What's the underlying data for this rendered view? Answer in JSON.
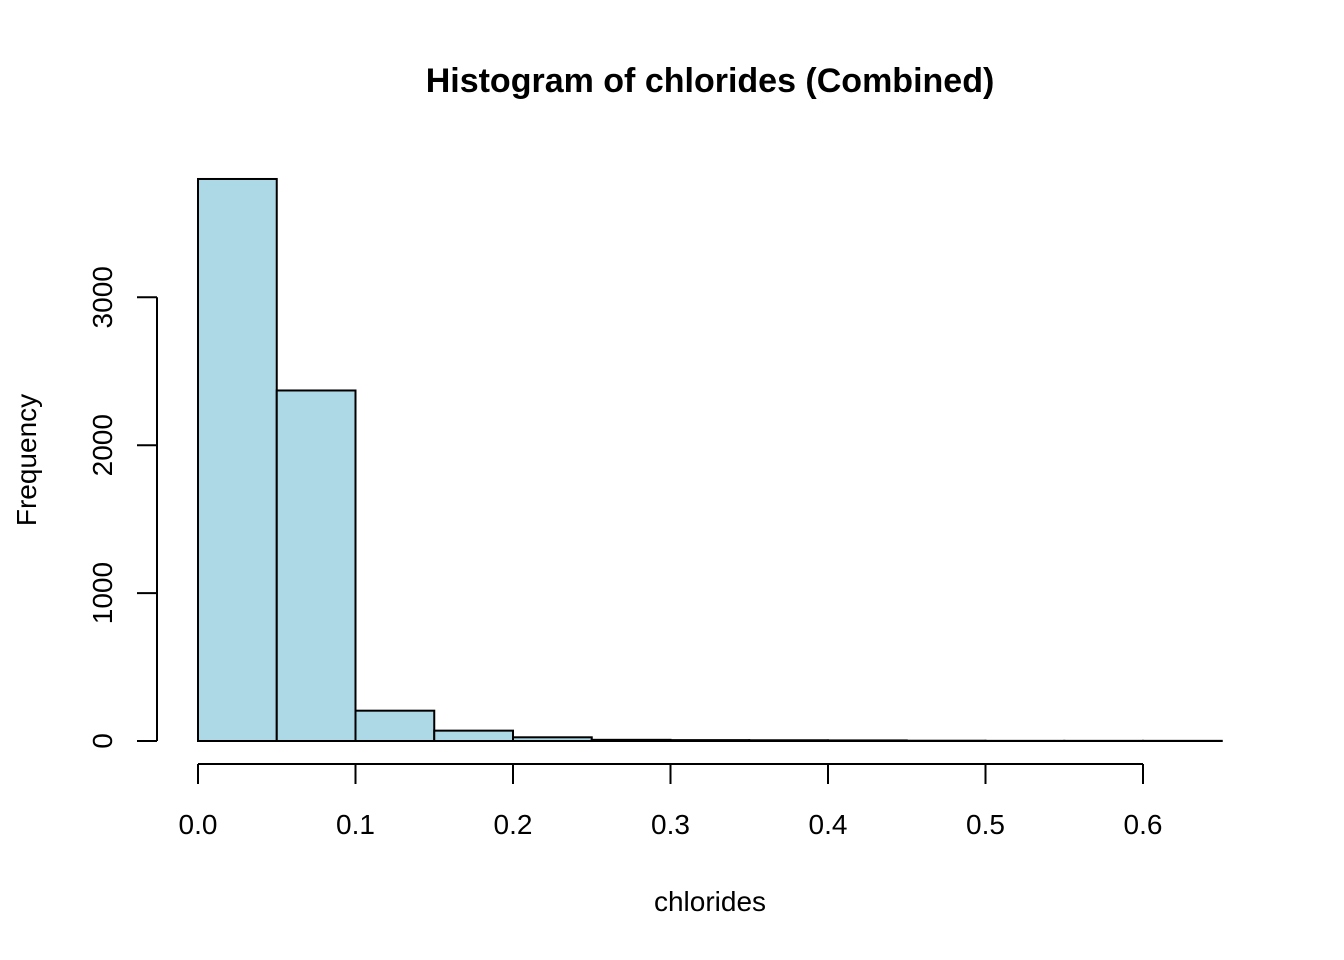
{
  "chart_data": {
    "type": "bar",
    "title": "Histogram of chlorides (Combined)",
    "xlabel": "chlorides",
    "ylabel": "Frequency",
    "bin_edges": [
      0.0,
      0.05,
      0.1,
      0.15,
      0.2,
      0.25,
      0.3,
      0.35,
      0.4,
      0.45,
      0.5,
      0.55,
      0.6,
      0.65
    ],
    "values": [
      3800,
      2370,
      205,
      70,
      25,
      8,
      6,
      5,
      4,
      2,
      1,
      1,
      1
    ],
    "x_ticks": [
      "0.0",
      "0.1",
      "0.2",
      "0.3",
      "0.4",
      "0.5",
      "0.6"
    ],
    "x_tick_values": [
      0.0,
      0.1,
      0.2,
      0.3,
      0.4,
      0.5,
      0.6
    ],
    "y_ticks": [
      "0",
      "1000",
      "2000",
      "3000"
    ],
    "y_tick_values": [
      0,
      1000,
      2000,
      3000
    ],
    "xlim": [
      0.0,
      0.65
    ],
    "ylim": [
      0,
      3800
    ],
    "bar_color": "#add8e6",
    "grid": false,
    "legend": "none"
  }
}
